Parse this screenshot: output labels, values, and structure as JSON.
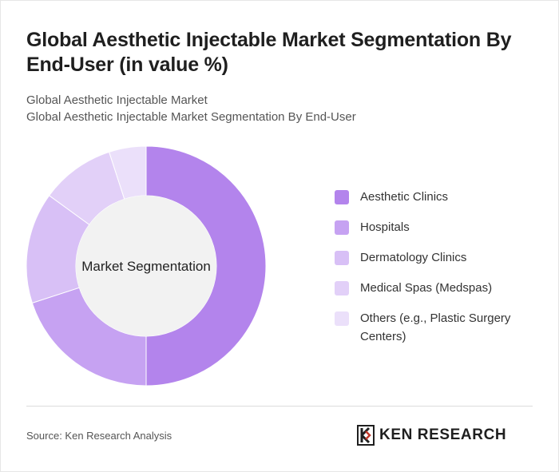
{
  "header": {
    "title": "Global Aesthetic Injectable Market Segmentation By End-User (in value %)",
    "subtitle_line1": "Global Aesthetic Injectable Market",
    "subtitle_line2": "Global Aesthetic Injectable Market Segmentation By End-User"
  },
  "chart_data": {
    "type": "pie",
    "center_label": "Market Segmentation",
    "legend_position": "right",
    "categories": [
      "Aesthetic Clinics",
      "Hospitals",
      "Dermatology Clinics",
      "Medical Spas (Medspas)",
      "Others (e.g., Plastic Surgery Centers)"
    ],
    "values": [
      50,
      20,
      15,
      10,
      5
    ],
    "colors": [
      "#b384ec",
      "#c6a2f2",
      "#d8c0f6",
      "#e2d0f8",
      "#ebe0fa"
    ]
  },
  "footer": {
    "source": "Source: Ken Research Analysis",
    "logo_text": "KEN RESEARCH"
  }
}
